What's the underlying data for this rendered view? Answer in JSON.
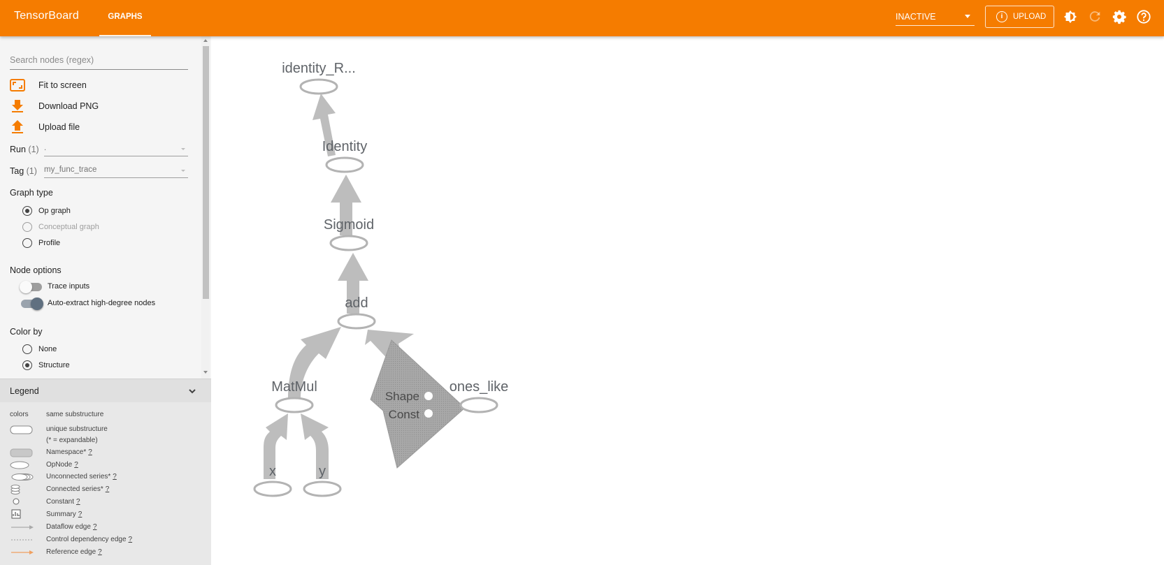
{
  "header": {
    "brand": "TensorBoard",
    "tab_graphs": "GRAPHS",
    "run_status": "INACTIVE",
    "upload_label": "UPLOAD",
    "accent_color": "#f57c00"
  },
  "sidebar": {
    "search_placeholder": "Search nodes (regex)",
    "actions": {
      "fit": "Fit to screen",
      "download": "Download PNG",
      "upload": "Upload file"
    },
    "run": {
      "label": "Run",
      "count": "(1)",
      "value": "."
    },
    "tag": {
      "label": "Tag",
      "count": "(1)",
      "value": "my_func_trace"
    },
    "graph_type": {
      "title": "Graph type",
      "options": [
        "Op graph",
        "Conceptual graph",
        "Profile"
      ],
      "selected": "Op graph"
    },
    "node_options": {
      "title": "Node options",
      "trace_inputs": "Trace inputs",
      "auto_extract": "Auto-extract high-degree nodes",
      "trace_inputs_on": false,
      "auto_extract_on": true
    },
    "color_by": {
      "title": "Color by",
      "options": [
        "None",
        "Structure"
      ],
      "selected": "Structure"
    }
  },
  "legend": {
    "title": "Legend",
    "rows": [
      {
        "symbol": "colors",
        "desc": "same substructure",
        "help": ""
      },
      {
        "symbol": "",
        "desc": "unique substructure",
        "help": ""
      },
      {
        "symbol": "",
        "desc": "(* = expandable)",
        "help": ""
      },
      {
        "symbol": "",
        "desc": "Namespace*",
        "help": "?"
      },
      {
        "symbol": "",
        "desc": "OpNode",
        "help": "?"
      },
      {
        "symbol": "",
        "desc": "Unconnected series*",
        "help": "?"
      },
      {
        "symbol": "",
        "desc": "Connected series*",
        "help": "?"
      },
      {
        "symbol": "",
        "desc": "Constant",
        "help": "?"
      },
      {
        "symbol": "",
        "desc": "Summary",
        "help": "?"
      },
      {
        "symbol": "",
        "desc": "Dataflow edge",
        "help": "?"
      },
      {
        "symbol": "",
        "desc": "Control dependency edge",
        "help": "?"
      },
      {
        "symbol": "",
        "desc": "Reference edge",
        "help": "?"
      }
    ]
  },
  "graph": {
    "nodes": {
      "identity_r": "identity_R...",
      "identity": "Identity",
      "sigmoid": "Sigmoid",
      "add": "add",
      "matmul": "MatMul",
      "ones_like": "ones_like",
      "x": "x",
      "y": "y",
      "shape": "Shape",
      "const": "Const"
    },
    "edge_color": "#b8b8b8",
    "node_stroke": "#b0b0b0"
  }
}
